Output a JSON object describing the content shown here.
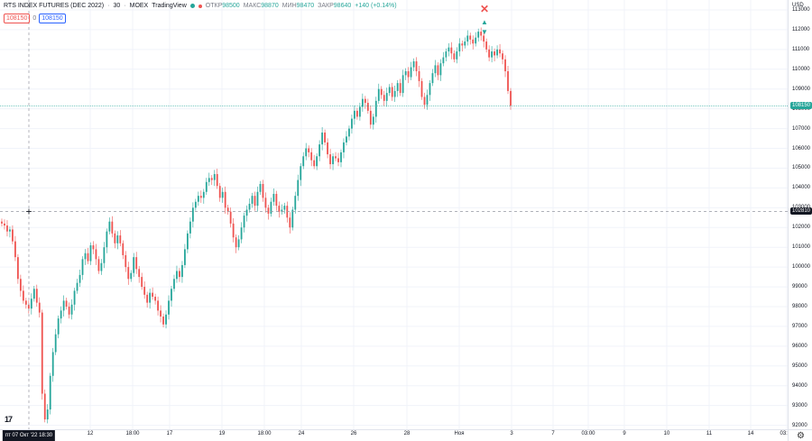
{
  "legend": {
    "symbol": "RTS INDEX FUTURES (DEC 2022)",
    "interval": "30",
    "exchange": "MOEX",
    "source": "TradingView",
    "open_label": "ОТКР",
    "open_value": "98500",
    "high_label": "МАКС",
    "high_value": "98870",
    "low_label": "МИН",
    "low_value": "98470",
    "close_label": "ЗАКР",
    "close_value": "98640",
    "change": "+140 (+0.14%)",
    "bid": "108150",
    "spread": "0",
    "ask": "108150"
  },
  "price_axis": {
    "currency": "USD",
    "last_price_tag": "108150",
    "crosshair_price_tag": "102810"
  },
  "time_axis": {
    "crosshair_time": "пт 07 Окт '22   18:30"
  },
  "colors": {
    "up": "#26a69a",
    "down": "#ef5350",
    "grid": "#f0f3fa",
    "last_price": "#26a69a",
    "crosshair_tag": "#131722"
  },
  "chart_data": {
    "type": "candlestick",
    "symbol": "RTS INDEX FUTURES (DEC 2022)",
    "ylim": [
      91800,
      113500
    ],
    "y_ticks": [
      113000,
      112000,
      111000,
      110000,
      109000,
      108000,
      107000,
      106000,
      105000,
      104000,
      103000,
      102000,
      101000,
      100000,
      99000,
      98000,
      97000,
      96000,
      95000,
      94000,
      93000,
      92000
    ],
    "x_ticks": [
      "12",
      "18:00",
      "17",
      "19",
      "18:00",
      "24",
      "26",
      "28",
      "Ноя",
      "3",
      "7",
      "03:00",
      "9",
      "10",
      "11",
      "14",
      "03:00"
    ],
    "close_path": [
      [
        102200,
        102100,
        101800,
        101900,
        101300,
        100500,
        99400,
        98800,
        98300,
        98100,
        97900,
        98400,
        98900,
        98200,
        97700,
        93600,
        92300,
        92800,
        94500,
        95700,
        96600,
        97400,
        97800,
        98300,
        98000,
        97600,
        98100,
        98800,
        99200,
        99600,
        100400,
        100700,
        100300,
        101100,
        100900,
        100400,
        99800,
        100200,
        101000,
        101800,
        102300,
        101700,
        101200,
        101600,
        101200,
        100600,
        100000,
        99400,
        99700,
        100500,
        99900,
        99500,
        99000,
        98600,
        98200,
        98700,
        98500,
        98300,
        97800,
        97500,
        97100,
        97600,
        98300,
        98900,
        99400,
        99800,
        99500,
        100100,
        100900,
        101700,
        102300,
        103000,
        103300,
        103600,
        103500,
        103800,
        104300,
        104500,
        104400,
        104700,
        104100,
        103500,
        103800,
        103000,
        102800,
        102200,
        101500,
        101000,
        101400,
        102000,
        102600,
        102900,
        103200,
        103600,
        103100,
        103800,
        104200,
        103500,
        103000,
        102700,
        103300,
        103700,
        103100,
        102800,
        102900,
        103100,
        102500,
        102000,
        102900,
        103600,
        104400,
        105100,
        105600,
        106000,
        105800,
        105400,
        105100,
        105600,
        106200,
        106800,
        106300,
        105700,
        105200,
        105600,
        105500,
        105300,
        105800,
        106300,
        106600,
        107000,
        107500,
        107900,
        107600,
        108100,
        108500,
        108300,
        107900,
        107200,
        107600,
        108400,
        109000,
        108700,
        108400,
        108800,
        109100,
        108600,
        108900,
        109300,
        108800,
        109700,
        109900,
        109600,
        110100,
        110400,
        109900,
        109400,
        108600,
        108200,
        108700,
        109300,
        109800,
        110200,
        109700,
        110300,
        110600,
        110900,
        111100,
        110800,
        110500,
        110900,
        111300,
        111200,
        111400,
        111700,
        111500,
        111300,
        111600,
        111900,
        111700,
        111400,
        111000,
        110600,
        110900,
        110700,
        111000,
        110800,
        110500,
        109900,
        108900,
        108150
      ]
    ],
    "last_price": 108150,
    "markers": [
      {
        "type": "cross",
        "price": 113000,
        "color": "#ef5350"
      },
      {
        "type": "arrow-up",
        "price": 112400,
        "color": "#26a69a"
      },
      {
        "type": "arrow-down",
        "price": 111900,
        "color": "#26a69a"
      }
    ]
  }
}
